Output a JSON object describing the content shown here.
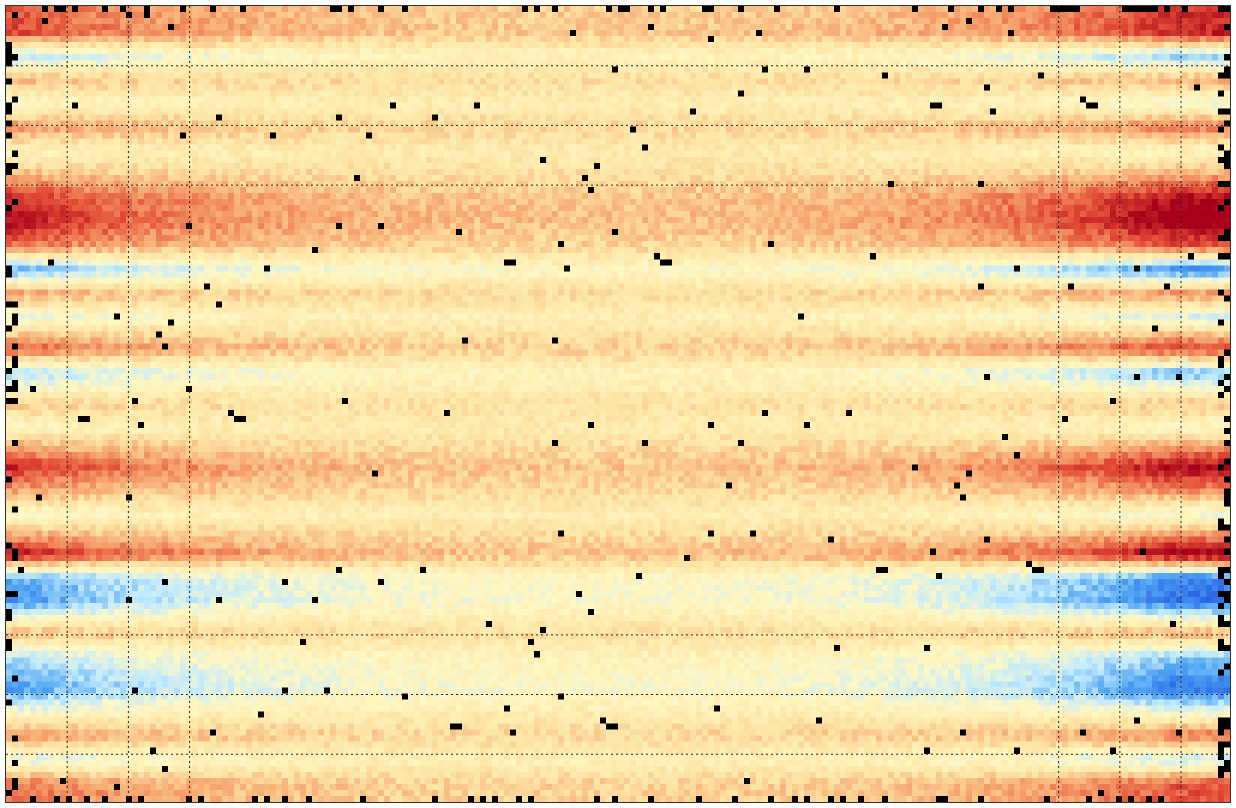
{
  "chart_data": {
    "type": "heatmap",
    "title": "",
    "xlabel": "",
    "ylabel": "",
    "grid": "dotted",
    "colormap": {
      "name": "diverging",
      "stops": [
        "#2c63e6",
        "#4aa0f2",
        "#bfeaff",
        "#fff8c4",
        "#fde4a4",
        "#f6a26c",
        "#e24b36",
        "#a8001a"
      ],
      "mask_color": "#000000"
    },
    "grid_size": {
      "cols": 204,
      "rows": 132
    },
    "x_domain": [
      0,
      1
    ],
    "y_domain": [
      0,
      1
    ],
    "vertical_gridlines": [
      0.05,
      0.1,
      0.15,
      0.86,
      0.91,
      0.96
    ],
    "horizontal_gridlines": [
      0.075,
      0.15,
      0.225,
      0.79,
      0.865,
      0.94
    ],
    "bands": [
      {
        "y": 0.0,
        "value": 0.7
      },
      {
        "y": 0.03,
        "value": 0.8
      },
      {
        "y": 0.06,
        "value": -0.6
      },
      {
        "y": 0.09,
        "value": 0.3
      },
      {
        "y": 0.12,
        "value": -0.3
      },
      {
        "y": 0.15,
        "value": 0.5
      },
      {
        "y": 0.18,
        "value": -0.2
      },
      {
        "y": 0.21,
        "value": 0.3
      },
      {
        "y": 0.24,
        "value": 0.9
      },
      {
        "y": 0.27,
        "value": 1.0
      },
      {
        "y": 0.3,
        "value": 0.6
      },
      {
        "y": 0.33,
        "value": -0.9
      },
      {
        "y": 0.36,
        "value": 0.4
      },
      {
        "y": 0.39,
        "value": -0.4
      },
      {
        "y": 0.43,
        "value": 0.7
      },
      {
        "y": 0.46,
        "value": -0.7
      },
      {
        "y": 0.5,
        "value": 0.2
      },
      {
        "y": 0.53,
        "value": -0.2
      },
      {
        "y": 0.58,
        "value": 0.9
      },
      {
        "y": 0.61,
        "value": 0.4
      },
      {
        "y": 0.64,
        "value": -0.3
      },
      {
        "y": 0.69,
        "value": 1.0
      },
      {
        "y": 0.72,
        "value": -0.9
      },
      {
        "y": 0.75,
        "value": -1.0
      },
      {
        "y": 0.79,
        "value": 0.3
      },
      {
        "y": 0.82,
        "value": -0.6
      },
      {
        "y": 0.86,
        "value": -1.0
      },
      {
        "y": 0.89,
        "value": -0.3
      },
      {
        "y": 0.92,
        "value": 0.5
      },
      {
        "y": 0.95,
        "value": -0.5
      },
      {
        "y": 0.98,
        "value": 0.6
      }
    ]
  }
}
